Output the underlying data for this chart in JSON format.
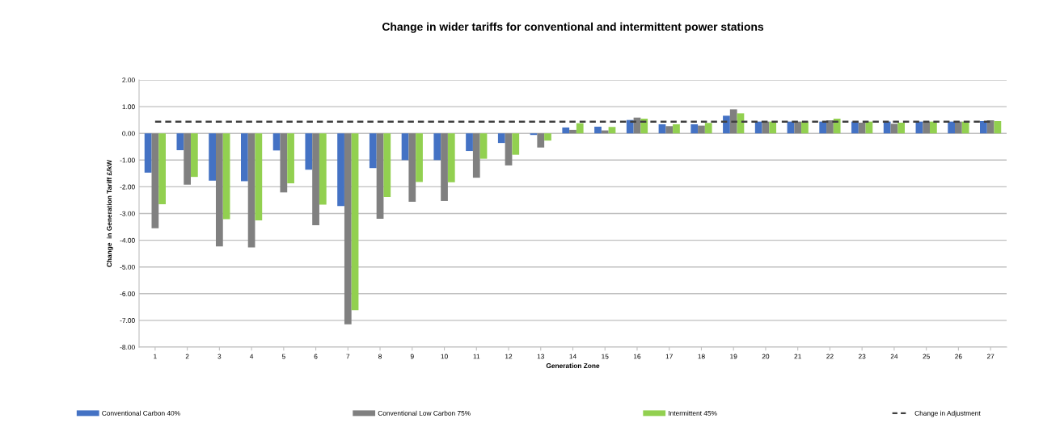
{
  "chart_data": {
    "type": "bar",
    "title": "Change in wider tariffs for conventional and intermittent power stations",
    "xlabel": "Generation Zone",
    "ylabel": "Change  in Generation Tariff £/kW",
    "categories": [
      "1",
      "2",
      "3",
      "4",
      "5",
      "6",
      "7",
      "8",
      "9",
      "10",
      "11",
      "12",
      "13",
      "14",
      "15",
      "16",
      "17",
      "18",
      "19",
      "20",
      "21",
      "22",
      "23",
      "24",
      "25",
      "26",
      "27"
    ],
    "series": [
      {
        "name": "Conventional Carbon 40%",
        "color": "#4472c4",
        "values": [
          -1.47,
          -0.63,
          -1.77,
          -1.79,
          -0.64,
          -1.36,
          -2.72,
          -1.3,
          -1.0,
          -1.0,
          -0.66,
          -0.36,
          -0.06,
          0.22,
          0.25,
          0.5,
          0.34,
          0.34,
          0.66,
          0.44,
          0.44,
          0.44,
          0.44,
          0.44,
          0.44,
          0.44,
          0.46
        ]
      },
      {
        "name": "Conventional Low Carbon 75%",
        "color": "#808080",
        "values": [
          -3.55,
          -1.92,
          -4.23,
          -4.27,
          -2.21,
          -3.44,
          -7.15,
          -3.2,
          -2.56,
          -2.53,
          -1.66,
          -1.2,
          -0.53,
          0.13,
          0.11,
          0.59,
          0.27,
          0.29,
          0.9,
          0.44,
          0.44,
          0.49,
          0.4,
          0.36,
          0.44,
          0.44,
          0.49
        ]
      },
      {
        "name": "Intermittent 45%",
        "color": "#92d050",
        "values": [
          -2.65,
          -1.63,
          -3.21,
          -3.26,
          -1.87,
          -2.67,
          -6.62,
          -2.38,
          -1.82,
          -1.83,
          -0.95,
          -0.8,
          -0.27,
          0.38,
          0.24,
          0.55,
          0.34,
          0.39,
          0.75,
          0.44,
          0.44,
          0.55,
          0.44,
          0.4,
          0.44,
          0.44,
          0.46
        ]
      },
      {
        "name": "Change in Adjustment",
        "type": "line",
        "line_style": "dashed",
        "color": "#404040",
        "values": [
          0.44,
          0.44,
          0.44,
          0.44,
          0.44,
          0.44,
          0.44,
          0.44,
          0.44,
          0.44,
          0.44,
          0.44,
          0.44,
          0.44,
          0.44,
          0.44,
          0.44,
          0.44,
          0.44,
          0.44,
          0.44,
          0.44,
          0.44,
          0.44,
          0.44,
          0.44,
          0.44
        ]
      }
    ],
    "ylim": [
      -8,
      2
    ],
    "yticks": [
      {
        "value": 2,
        "label": "2.00"
      },
      {
        "value": 1,
        "label": "1.00"
      },
      {
        "value": 0,
        "label": "0.00"
      },
      {
        "value": -1,
        "label": "-1.00"
      },
      {
        "value": -2,
        "label": "-2.00"
      },
      {
        "value": -3,
        "label": "-3.00"
      },
      {
        "value": -4,
        "label": "-4.00"
      },
      {
        "value": -5,
        "label": "-5.00"
      },
      {
        "value": -6,
        "label": "-6.00"
      },
      {
        "value": -7,
        "label": "-7.00"
      },
      {
        "value": -8,
        "label": "-8.00"
      }
    ],
    "grid": "y",
    "legend": "bottom"
  }
}
